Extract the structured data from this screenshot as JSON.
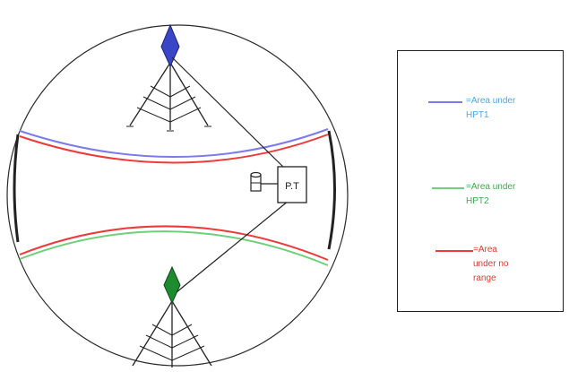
{
  "diagram": {
    "pt_label": "P.T"
  },
  "legend": {
    "items": [
      {
        "label_line1": "=Area under",
        "label_line2": "HPT1",
        "label_line3": "",
        "color": "#7b7bea"
      },
      {
        "label_line1": "=Area under",
        "label_line2": "HPT2",
        "label_line3": "",
        "color": "#6fd07a"
      },
      {
        "label_line1": "=Area",
        "label_line2": "under no",
        "label_line3": "range",
        "color": "#ee3a3a"
      }
    ]
  },
  "colors": {
    "tower1_top": "#3a46c8",
    "tower2_top": "#1e8c2e",
    "outline": "#222222"
  }
}
